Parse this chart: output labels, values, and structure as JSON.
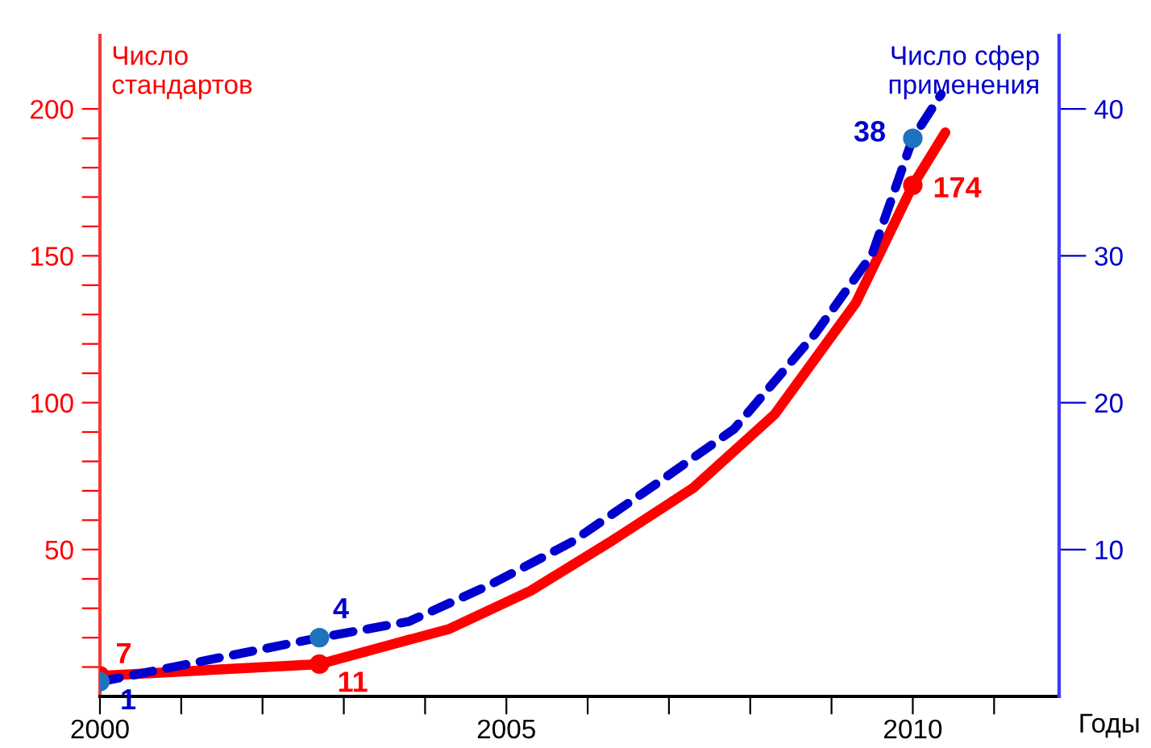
{
  "chart_data": {
    "type": "line",
    "xlabel": "Годы",
    "ylabel": "Число\nстандартов",
    "y2label": "Число сфер\nприменения",
    "xlim": [
      2000,
      2011.8
    ],
    "ylim": [
      0,
      225
    ],
    "y2lim": [
      0,
      45
    ],
    "xticks": [
      2000,
      {
        "value": 2001,
        "label": null
      },
      {
        "value": 2002,
        "label": null
      },
      {
        "value": 2003,
        "label": null
      },
      {
        "value": 2004,
        "label": null
      },
      2005,
      {
        "value": 2006,
        "label": null
      },
      {
        "value": 2007,
        "label": null
      },
      {
        "value": 2008,
        "label": null
      },
      {
        "value": 2009,
        "label": null
      },
      2010,
      {
        "value": 2011,
        "label": null
      }
    ],
    "yticks": [
      {
        "value": 10,
        "label": null
      },
      {
        "value": 20,
        "label": null
      },
      {
        "value": 30,
        "label": null
      },
      {
        "value": 40,
        "label": null
      },
      50,
      {
        "value": 60,
        "label": null
      },
      {
        "value": 70,
        "label": null
      },
      {
        "value": 80,
        "label": null
      },
      {
        "value": 90,
        "label": null
      },
      100,
      {
        "value": 110,
        "label": null
      },
      {
        "value": 120,
        "label": null
      },
      {
        "value": 130,
        "label": null
      },
      {
        "value": 140,
        "label": null
      },
      150,
      {
        "value": 160,
        "label": null
      },
      {
        "value": 170,
        "label": null
      },
      {
        "value": 180,
        "label": null
      },
      {
        "value": 190,
        "label": null
      },
      200
    ],
    "y2ticks": [
      10,
      20,
      30,
      40
    ],
    "grid": false,
    "legend": false,
    "series": [
      {
        "color": "#ff0000",
        "line_style": "solid",
        "marker": "none",
        "x": [
          2000,
          2002.7,
          2004.3,
          2005.3,
          2006.3,
          2007.3,
          2008.3,
          2009.3,
          2010,
          2010.4
        ],
        "values": [
          7,
          11,
          23,
          36,
          53,
          71,
          96,
          134,
          174,
          192
        ]
      },
      {
        "axis": "y2",
        "color": "#0000cc",
        "line_style": "dashed",
        "marker": "none",
        "x": [
          2000,
          2002.7,
          2003.8,
          2004.8,
          2005.8,
          2006.8,
          2007.8,
          2008.8,
          2009.5,
          2010,
          2010.35
        ],
        "values": [
          1,
          4,
          5.1,
          7.6,
          10.5,
          14.3,
          18.2,
          24.7,
          30.1,
          38,
          41
        ]
      },
      {
        "type": "scatter",
        "color": "#ff0000",
        "marker": "circle",
        "x": [
          2000,
          2002.7,
          2010
        ],
        "values": [
          7,
          11,
          174
        ],
        "value_labels": [
          "7",
          "11",
          "174"
        ]
      },
      {
        "type": "scatter",
        "axis": "y2",
        "color": "#1e73be",
        "marker": "circle",
        "x": [
          2000,
          2002.7,
          2010
        ],
        "values": [
          1,
          4,
          38
        ],
        "value_labels": [
          "1",
          "4",
          "38"
        ]
      }
    ]
  }
}
